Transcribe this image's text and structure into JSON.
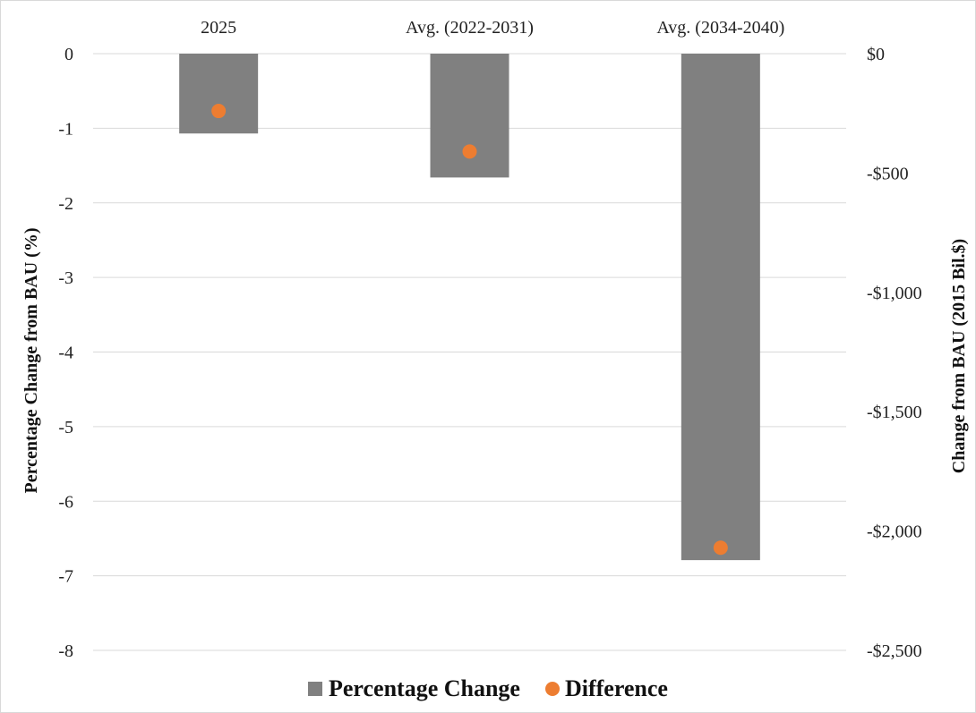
{
  "chart_data": {
    "type": "bar",
    "categories": [
      "2025",
      "Avg. (2022-2031)",
      "Avg. (2034-2040)"
    ],
    "series": [
      {
        "name": "Percentage Change",
        "type": "bar",
        "axis": "left",
        "values": [
          -1.07,
          -1.66,
          -6.79
        ],
        "color": "#808080"
      },
      {
        "name": "Difference",
        "type": "scatter",
        "axis": "right",
        "values": [
          -240,
          -410,
          -2070
        ],
        "color": "#ED7D31"
      }
    ],
    "y_left": {
      "label": "Percentage Change from BAU (%)",
      "range": [
        -8,
        0
      ],
      "ticks": [
        0,
        -1,
        -2,
        -3,
        -4,
        -5,
        -6,
        -7,
        -8
      ],
      "tick_labels": [
        "0",
        "-1",
        "-2",
        "-3",
        "-4",
        "-5",
        "-6",
        "-7",
        "-8"
      ]
    },
    "y_right": {
      "label": "Change from BAU (2015 Bil.$)",
      "range": [
        -2500,
        0
      ],
      "ticks": [
        0,
        -500,
        -1000,
        -1500,
        -2000,
        -2500
      ],
      "tick_labels": [
        "$0",
        "-$500",
        "-$1,000",
        "-$1,500",
        "-$2,000",
        "-$2,500"
      ]
    },
    "category_axis_position": "top",
    "grid": true,
    "legend_position": "bottom"
  }
}
